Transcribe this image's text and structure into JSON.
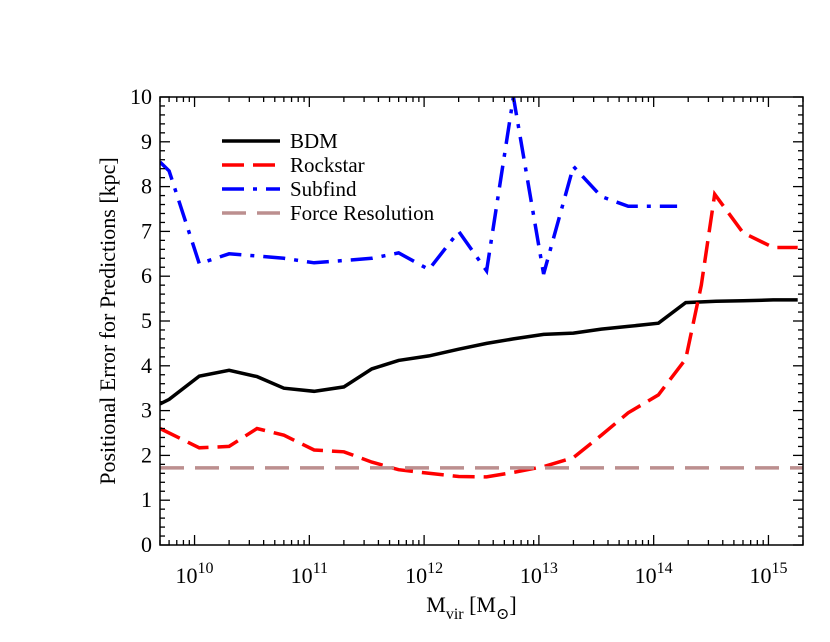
{
  "chart_data": {
    "type": "line",
    "title": "",
    "xlabel": "M",
    "xlabel_sub": "vir",
    "xlabel_unit_open": " [M",
    "xlabel_unit_sub": "⊙",
    "xlabel_unit_close": "]",
    "ylabel": "Positional Error for Predictions [kpc]",
    "xscale": "log",
    "xlim": [
      5000000000.0,
      2000000000000000.0
    ],
    "ylim": [
      0,
      10
    ],
    "x_ticks": [
      {
        "value": 10000000000.0,
        "base": "10",
        "exp": "10"
      },
      {
        "value": 100000000000.0,
        "base": "10",
        "exp": "11"
      },
      {
        "value": 1000000000000.0,
        "base": "10",
        "exp": "12"
      },
      {
        "value": 10000000000000.0,
        "base": "10",
        "exp": "13"
      },
      {
        "value": 100000000000000.0,
        "base": "10",
        "exp": "14"
      },
      {
        "value": 1000000000000000.0,
        "base": "10",
        "exp": "15"
      }
    ],
    "y_ticks": [
      "0",
      "1",
      "2",
      "3",
      "4",
      "5",
      "6",
      "7",
      "8",
      "9",
      "10"
    ],
    "grid": false,
    "legend_position": "top-left",
    "series": [
      {
        "name": "BDM",
        "color": "#000000",
        "dash": "solid",
        "points": [
          [
            5000000000.0,
            3.15
          ],
          [
            6000000000.0,
            3.25
          ],
          [
            11000000000.0,
            3.77
          ],
          [
            20000000000.0,
            3.9
          ],
          [
            35000000000.0,
            3.76
          ],
          [
            60000000000.0,
            3.5
          ],
          [
            110000000000.0,
            3.43
          ],
          [
            200000000000.0,
            3.53
          ],
          [
            350000000000.0,
            3.93
          ],
          [
            600000000000.0,
            4.12
          ],
          [
            1100000000000.0,
            4.22
          ],
          [
            2000000000000.0,
            4.37
          ],
          [
            3500000000000.0,
            4.5
          ],
          [
            6000000000000.0,
            4.6
          ],
          [
            11000000000000.0,
            4.7
          ],
          [
            20000000000000.0,
            4.73
          ],
          [
            35000000000000.0,
            4.82
          ],
          [
            60000000000000.0,
            4.88
          ],
          [
            110000000000000.0,
            4.95
          ],
          [
            190000000000000.0,
            5.41
          ],
          [
            350000000000000.0,
            5.44
          ],
          [
            600000000000000.0,
            5.45
          ],
          [
            1100000000000000.0,
            5.47
          ],
          [
            1800000000000000.0,
            5.47
          ]
        ]
      },
      {
        "name": "Rockstar",
        "color": "#ff0000",
        "dash": "dashed",
        "points": [
          [
            5000000000.0,
            2.6
          ],
          [
            11000000000.0,
            2.17
          ],
          [
            20000000000.0,
            2.2
          ],
          [
            35000000000.0,
            2.6
          ],
          [
            60000000000.0,
            2.45
          ],
          [
            110000000000.0,
            2.12
          ],
          [
            200000000000.0,
            2.08
          ],
          [
            350000000000.0,
            1.85
          ],
          [
            600000000000.0,
            1.68
          ],
          [
            1100000000000.0,
            1.6
          ],
          [
            2000000000000.0,
            1.53
          ],
          [
            3500000000000.0,
            1.52
          ],
          [
            6000000000000.0,
            1.62
          ],
          [
            11000000000000.0,
            1.75
          ],
          [
            20000000000000.0,
            1.95
          ],
          [
            35000000000000.0,
            2.45
          ],
          [
            60000000000000.0,
            2.95
          ],
          [
            110000000000000.0,
            3.35
          ],
          [
            190000000000000.0,
            4.15
          ],
          [
            260000000000000.0,
            5.8
          ],
          [
            340000000000000.0,
            7.83
          ],
          [
            600000000000000.0,
            6.97
          ],
          [
            1100000000000000.0,
            6.64
          ],
          [
            1800000000000000.0,
            6.64
          ]
        ]
      },
      {
        "name": "Subfind",
        "color": "#0000ff",
        "dash": "dashdot",
        "points": [
          [
            5000000000.0,
            8.55
          ],
          [
            6000000000.0,
            8.35
          ],
          [
            11000000000.0,
            6.28
          ],
          [
            20000000000.0,
            6.5
          ],
          [
            35000000000.0,
            6.45
          ],
          [
            60000000000.0,
            6.4
          ],
          [
            110000000000.0,
            6.3
          ],
          [
            200000000000.0,
            6.35
          ],
          [
            350000000000.0,
            6.4
          ],
          [
            600000000000.0,
            6.52
          ],
          [
            1100000000000.0,
            6.15
          ],
          [
            2000000000000.0,
            7.0
          ],
          [
            3500000000000.0,
            6.12
          ],
          [
            6000000000000.0,
            10.0
          ],
          [
            11000000000000.0,
            6.05
          ],
          [
            20000000000000.0,
            8.45
          ],
          [
            35000000000000.0,
            7.78
          ],
          [
            60000000000000.0,
            7.56
          ],
          [
            110000000000000.0,
            7.56
          ],
          [
            160000000000000.0,
            7.56
          ]
        ]
      },
      {
        "name": "Force Resolution",
        "color": "#bc8f8f",
        "dash": "longdash",
        "points": [
          [
            5000000000.0,
            1.72
          ],
          [
            2000000000000000.0,
            1.72
          ]
        ]
      }
    ]
  }
}
